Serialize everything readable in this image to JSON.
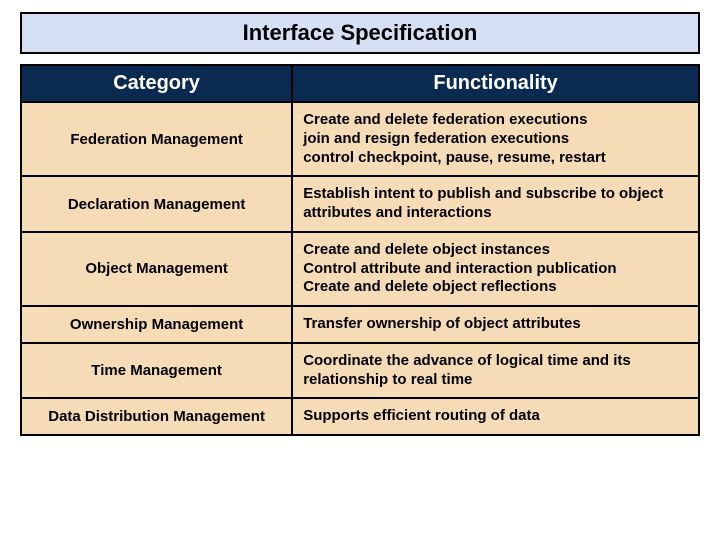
{
  "title": "Interface Specification",
  "colors": {
    "title_bg": "#d6e0f5",
    "header_bg": "#0b2a52",
    "header_fg": "#ffffff",
    "cell_bg": "#f6dcb6"
  },
  "columns": {
    "category": "Category",
    "functionality": "Functionality"
  },
  "rows": [
    {
      "category": "Federation Management",
      "functionality": "Create and delete federation executions\njoin and resign federation executions\ncontrol checkpoint, pause, resume, restart"
    },
    {
      "category": "Declaration Management",
      "functionality": "Establish intent to publish and subscribe to object attributes and interactions"
    },
    {
      "category": "Object Management",
      "functionality": "Create and delete object instances\nControl attribute and interaction publication\nCreate and delete object reflections"
    },
    {
      "category": "Ownership Management",
      "functionality": "Transfer ownership of object attributes"
    },
    {
      "category": "Time Management",
      "functionality": "Coordinate the advance of logical time and its relationship to real time"
    },
    {
      "category": "Data Distribution Management",
      "functionality": "Supports efficient routing of data"
    }
  ]
}
